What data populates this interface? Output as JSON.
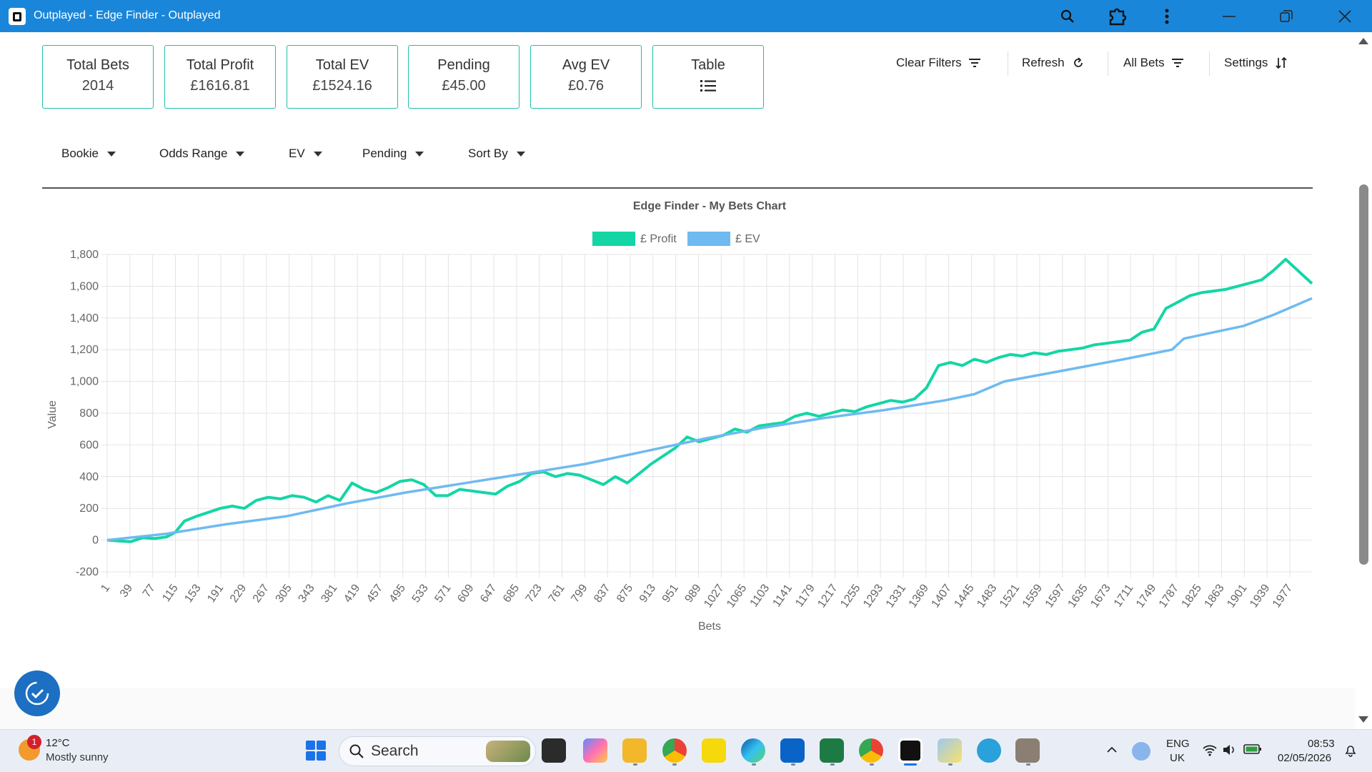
{
  "window": {
    "title": "Outplayed - Edge Finder - Outplayed"
  },
  "stats": [
    {
      "label": "Total Bets",
      "value": "2014"
    },
    {
      "label": "Total Profit",
      "value": "£1616.81"
    },
    {
      "label": "Total EV",
      "value": "£1524.16"
    },
    {
      "label": "Pending",
      "value": "£45.00"
    },
    {
      "label": "Avg EV",
      "value": "£0.76"
    },
    {
      "label": "Table",
      "value": ""
    }
  ],
  "actions": {
    "clear_filters": "Clear Filters",
    "refresh": "Refresh",
    "all_bets": "All Bets",
    "settings": "Settings"
  },
  "filters": [
    "Bookie",
    "Odds Range",
    "EV",
    "Pending",
    "Sort By"
  ],
  "chart_data": {
    "type": "line",
    "title": "Edge Finder - My Bets Chart",
    "xlabel": "Bets",
    "ylabel": "Value",
    "ylim": [
      -200,
      1800
    ],
    "xlim": [
      1,
      2014
    ],
    "y_ticks": [
      "-200",
      "0",
      "200",
      "400",
      "600",
      "800",
      "1,000",
      "1,200",
      "1,400",
      "1,600",
      "1,800"
    ],
    "x_ticks": [
      "1",
      "39",
      "77",
      "115",
      "153",
      "191",
      "229",
      "267",
      "305",
      "343",
      "381",
      "419",
      "457",
      "495",
      "533",
      "571",
      "609",
      "647",
      "685",
      "723",
      "761",
      "799",
      "837",
      "875",
      "913",
      "951",
      "989",
      "1027",
      "1065",
      "1103",
      "1141",
      "1179",
      "1217",
      "1255",
      "1293",
      "1331",
      "1369",
      "1407",
      "1445",
      "1483",
      "1521",
      "1559",
      "1597",
      "1635",
      "1673",
      "1711",
      "1749",
      "1787",
      "1825",
      "1863",
      "1901",
      "1939",
      "1977"
    ],
    "legend_position": "top-center",
    "grid": true,
    "series": [
      {
        "name": "£ Profit",
        "color": "#13d6a4",
        "x": [
          1,
          20,
          40,
          60,
          80,
          100,
          115,
          130,
          150,
          170,
          190,
          210,
          230,
          250,
          270,
          290,
          310,
          330,
          350,
          370,
          390,
          410,
          430,
          450,
          470,
          490,
          510,
          530,
          550,
          570,
          590,
          610,
          630,
          650,
          670,
          690,
          710,
          730,
          750,
          770,
          790,
          810,
          830,
          850,
          870,
          890,
          910,
          930,
          950,
          970,
          990,
          1010,
          1030,
          1050,
          1070,
          1090,
          1110,
          1130,
          1150,
          1170,
          1190,
          1210,
          1230,
          1250,
          1270,
          1290,
          1310,
          1330,
          1350,
          1370,
          1390,
          1410,
          1430,
          1450,
          1470,
          1490,
          1510,
          1530,
          1550,
          1570,
          1590,
          1610,
          1630,
          1650,
          1670,
          1690,
          1710,
          1730,
          1750,
          1770,
          1790,
          1810,
          1830,
          1850,
          1870,
          1890,
          1910,
          1930,
          1950,
          1970,
          1990,
          2014
        ],
        "values": [
          0,
          -5,
          -10,
          15,
          10,
          20,
          50,
          120,
          150,
          175,
          200,
          215,
          200,
          250,
          270,
          260,
          280,
          270,
          240,
          280,
          250,
          360,
          320,
          300,
          330,
          370,
          380,
          350,
          280,
          280,
          320,
          310,
          300,
          290,
          340,
          370,
          420,
          430,
          400,
          420,
          410,
          380,
          350,
          400,
          360,
          420,
          480,
          530,
          580,
          650,
          620,
          640,
          660,
          700,
          680,
          720,
          730,
          740,
          780,
          800,
          780,
          800,
          820,
          810,
          840,
          860,
          880,
          870,
          890,
          960,
          1100,
          1120,
          1100,
          1140,
          1120,
          1150,
          1170,
          1160,
          1180,
          1170,
          1190,
          1200,
          1210,
          1230,
          1240,
          1250,
          1260,
          1310,
          1330,
          1460,
          1500,
          1540,
          1560,
          1570,
          1580,
          1600,
          1620,
          1640,
          1700,
          1770,
          1700,
          1617
        ]
      },
      {
        "name": "£ EV",
        "color": "#6fbaf0",
        "x": [
          1,
          100,
          200,
          300,
          400,
          500,
          600,
          700,
          800,
          900,
          1000,
          1100,
          1200,
          1300,
          1400,
          1450,
          1500,
          1600,
          1700,
          1780,
          1800,
          1900,
          1950,
          2014
        ],
        "values": [
          0,
          40,
          100,
          150,
          230,
          300,
          360,
          420,
          480,
          560,
          640,
          710,
          770,
          820,
          880,
          920,
          1000,
          1070,
          1140,
          1200,
          1270,
          1350,
          1420,
          1524
        ]
      }
    ]
  },
  "taskbar": {
    "weather_temp": "12°C",
    "weather_desc": "Mostly sunny",
    "weather_badge": "1",
    "search": "Search",
    "lang_line1": "ENG",
    "lang_line2": "UK",
    "time": "08:53",
    "date": "02/05/2026"
  }
}
